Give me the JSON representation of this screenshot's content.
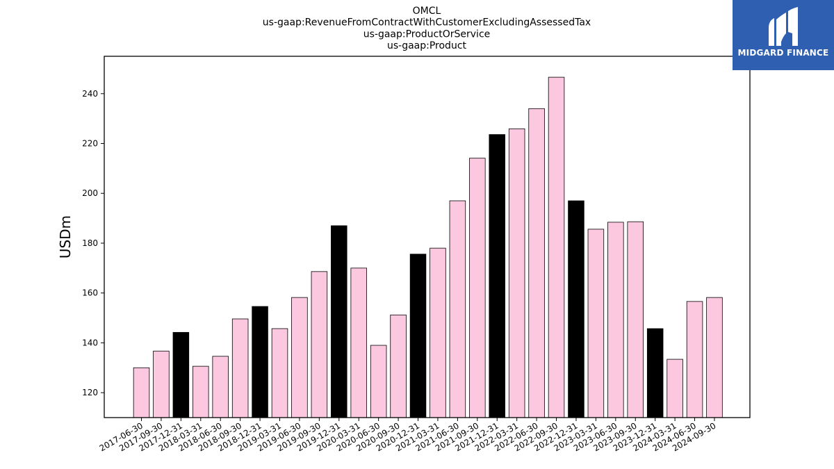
{
  "chart_data": {
    "type": "bar",
    "title_lines": [
      "OMCL",
      "us-gaap:RevenueFromContractWithCustomerExcludingAssessedTax",
      "us-gaap:ProductOrService",
      "us-gaap:Product"
    ],
    "ylabel": "USDm",
    "xlabel": "",
    "ylim": [
      110,
      255
    ],
    "yticks": [
      120,
      140,
      160,
      180,
      200,
      220,
      240
    ],
    "grid": false,
    "categories": [
      "2017-06-30",
      "2017-09-30",
      "2017-12-31",
      "2018-03-31",
      "2018-06-30",
      "2018-09-30",
      "2018-12-31",
      "2019-03-31",
      "2019-06-30",
      "2019-09-30",
      "2019-12-31",
      "2020-03-31",
      "2020-06-30",
      "2020-09-30",
      "2020-12-31",
      "2021-03-31",
      "2021-06-30",
      "2021-09-30",
      "2021-12-31",
      "2022-03-31",
      "2022-06-30",
      "2022-09-30",
      "2022-12-31",
      "2023-03-31",
      "2023-06-30",
      "2023-09-30",
      "2023-12-31",
      "2024-03-31",
      "2024-06-30",
      "2024-09-30"
    ],
    "values": [
      130.0,
      136.7,
      144.2,
      130.6,
      134.6,
      149.6,
      154.6,
      145.7,
      158.2,
      168.6,
      187.0,
      170.0,
      139.0,
      151.2,
      175.6,
      178.0,
      197.0,
      214.1,
      223.6,
      225.9,
      234.0,
      246.6,
      197.0,
      185.6,
      188.4,
      188.6,
      145.7,
      133.4,
      156.6,
      158.2
    ],
    "colors": {
      "default": "#fbc8e0",
      "highlight": "#000000",
      "edge": "#000000"
    },
    "highlight_categories": [
      "2017-12-31",
      "2018-12-31",
      "2019-12-31",
      "2020-12-31",
      "2021-12-31",
      "2022-12-31",
      "2023-12-31"
    ]
  },
  "logo": {
    "text": "MIDGARD FINANCE",
    "background": "#2f5fb0",
    "icon": "midgard-logo-icon"
  }
}
